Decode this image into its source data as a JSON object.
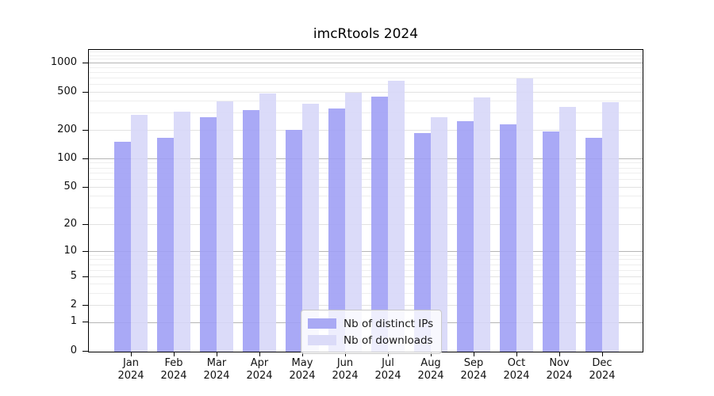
{
  "title": "imcRtools 2024",
  "chart_data": {
    "type": "bar",
    "title": "imcRtools 2024",
    "categories": [
      "Jan",
      "Feb",
      "Mar",
      "Apr",
      "May",
      "Jun",
      "Jul",
      "Aug",
      "Sep",
      "Oct",
      "Nov",
      "Dec"
    ],
    "year": "2024",
    "series": [
      {
        "name": "Nb of distinct IPs",
        "values": [
          150,
          165,
          270,
          320,
          200,
          335,
          440,
          185,
          245,
          225,
          190,
          165
        ],
        "color": "rgba(160,160,245,0.9)",
        "legend_color": "#a9a9f4"
      },
      {
        "name": "Nb of downloads",
        "values": [
          285,
          310,
          395,
          475,
          370,
          490,
          650,
          270,
          430,
          690,
          345,
          390
        ],
        "color": "rgba(215,215,248,0.9)",
        "legend_color": "#dbdbf8"
      }
    ],
    "xlabel": "",
    "ylabel": "",
    "y_axis": {
      "scale": "log1p",
      "ylim": [
        0,
        1400
      ],
      "tick_values": [
        1000,
        500,
        200,
        100,
        50,
        20,
        10,
        5,
        2,
        1,
        0
      ],
      "tick_labels": [
        "1000",
        "500",
        "200",
        "100",
        "50",
        "20",
        "10",
        "5",
        "2",
        "1",
        "0"
      ]
    },
    "gridlines": {
      "major_values": [
        1,
        10,
        100,
        1000
      ],
      "mid_values": [
        2,
        5,
        20,
        50,
        200,
        500
      ],
      "minor_values": [
        3,
        4,
        6,
        7,
        8,
        9,
        30,
        40,
        60,
        70,
        80,
        90,
        300,
        400,
        600,
        700,
        800,
        900,
        1100,
        1200,
        1300
      ],
      "major_color": "#b5b5b5",
      "mid_color": "#e2e2e2",
      "minor_color": "#eeeeee"
    },
    "legend": {
      "position": "bottom-center",
      "entries": [
        "Nb of distinct IPs",
        "Nb of downloads"
      ]
    },
    "grid": "on"
  }
}
